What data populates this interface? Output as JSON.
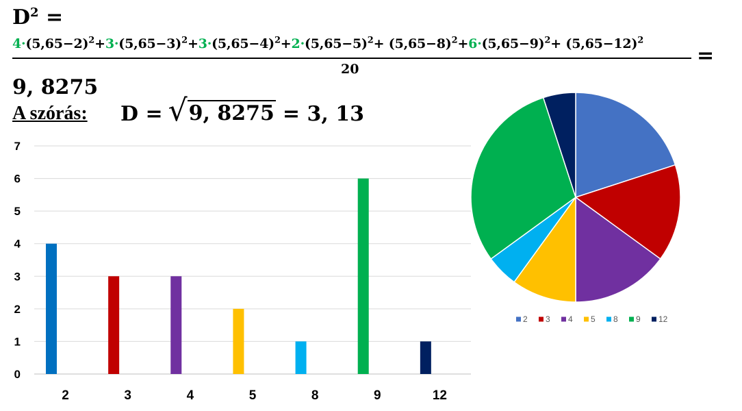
{
  "formula": {
    "d2_lhs": "D",
    "d2_exp": "2",
    "d2_eq": " =",
    "numerator": {
      "terms": [
        {
          "coef": "4",
          "sep": "·",
          "body": "(5,65−2)",
          "exp": "2",
          "op": "+"
        },
        {
          "coef": "3",
          "sep": "·",
          "body": "(5,65−3)",
          "exp": "2",
          "op": "+"
        },
        {
          "coef": "3",
          "sep": "·",
          "body": "(5,65−4)",
          "exp": "2",
          "op": "+"
        },
        {
          "coef": "2",
          "sep": "·",
          "body": "(5,65−5)",
          "exp": "2",
          "op": "+ "
        },
        {
          "coef": "",
          "sep": "",
          "body": "(5,65−8)",
          "exp": "2",
          "op": "+"
        },
        {
          "coef": "6",
          "sep": "·",
          "body": "(5,65−9)",
          "exp": "2",
          "op": "+ "
        },
        {
          "coef": "",
          "sep": "",
          "body": "(5,65−12)",
          "exp": "2",
          "op": ""
        }
      ]
    },
    "denominator": "20",
    "equals": "=",
    "result": "9, 8275",
    "szoras_label": "A szórás:",
    "szoras_lhs": "D =",
    "sqrt_symbol": "√",
    "radicand": "9, 8275",
    "szoras_rhs": "= 3, 13",
    "coef_color": "#00b050"
  },
  "chart_data": [
    {
      "type": "bar",
      "categories": [
        "2",
        "3",
        "4",
        "5",
        "8",
        "9",
        "12"
      ],
      "values": [
        4,
        3,
        3,
        2,
        1,
        6,
        1
      ],
      "colors": [
        "#0070c0",
        "#c00000",
        "#7030a0",
        "#ffc000",
        "#00b0f0",
        "#00b050",
        "#002060"
      ],
      "ylim": [
        0,
        7
      ],
      "yticks": [
        "0",
        "1",
        "2",
        "3",
        "4",
        "5",
        "6",
        "7"
      ],
      "grid": true,
      "title": "",
      "xlabel": "",
      "ylabel": ""
    },
    {
      "type": "pie",
      "categories": [
        "2",
        "3",
        "4",
        "5",
        "8",
        "9",
        "12"
      ],
      "values": [
        4,
        3,
        3,
        2,
        1,
        6,
        1
      ],
      "colors": [
        "#4472c4",
        "#c00000",
        "#7030a0",
        "#ffc000",
        "#00b0f0",
        "#00b050",
        "#002060"
      ],
      "legend_position": "bottom",
      "title": ""
    }
  ]
}
